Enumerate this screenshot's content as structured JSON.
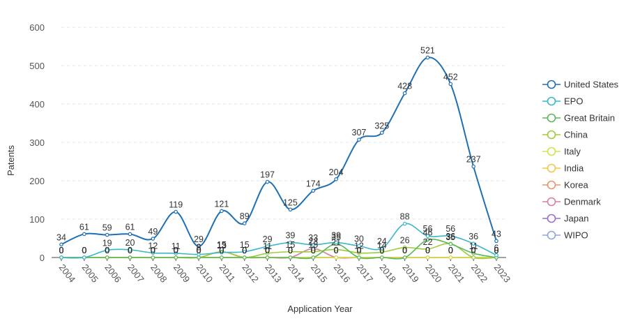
{
  "chart_data": {
    "type": "line",
    "xlabel": "Application Year",
    "ylabel": "Patents",
    "ylim": [
      0,
      600
    ],
    "yticks": [
      0,
      100,
      200,
      300,
      400,
      500,
      600
    ],
    "grid": "horizontal dashed",
    "legend_position": "right",
    "categories": [
      "2004",
      "2005",
      "2006",
      "2007",
      "2008",
      "2009",
      "2010",
      "2011",
      "2012",
      "2013",
      "2014",
      "2015",
      "2016",
      "2017",
      "2018",
      "2019",
      "2020",
      "2021",
      "2022",
      "2023"
    ],
    "series": [
      {
        "name": "United States",
        "color": "#1f6fb2",
        "values": [
          34,
          61,
          59,
          61,
          49,
          119,
          29,
          121,
          89,
          197,
          125,
          174,
          204,
          307,
          325,
          428,
          521,
          452,
          237,
          43
        ]
      },
      {
        "name": "EPO",
        "color": "#3ab7c9",
        "values": [
          0,
          0,
          19,
          20,
          12,
          11,
          8,
          13,
          15,
          29,
          39,
          33,
          39,
          30,
          24,
          88,
          56,
          56,
          36,
          6
        ]
      },
      {
        "name": "Great Britain",
        "color": "#5bb85c",
        "values": [
          0,
          0,
          0,
          0,
          0,
          0,
          0,
          0,
          0,
          0,
          0,
          0,
          35,
          0,
          0,
          0,
          46,
          35,
          11,
          0
        ]
      },
      {
        "name": "China",
        "color": "#9ccc3a",
        "values": [
          0,
          0,
          0,
          0,
          0,
          0,
          0,
          15,
          0,
          11,
          15,
          15,
          21,
          12,
          14,
          26,
          22,
          36,
          0,
          0
        ]
      },
      {
        "name": "Italy",
        "color": "#d6e04a",
        "values": [
          0,
          0,
          0,
          0,
          0,
          0,
          0,
          0,
          0,
          0,
          0,
          0,
          0,
          0,
          0,
          0,
          0,
          0,
          0,
          0
        ]
      },
      {
        "name": "India",
        "color": "#f0c64a",
        "values": [
          0,
          0,
          0,
          0,
          0,
          0,
          0,
          0,
          0,
          0,
          0,
          0,
          0,
          0,
          0,
          0,
          0,
          0,
          0,
          0
        ]
      },
      {
        "name": "Korea",
        "color": "#e8956a",
        "values": [
          0,
          0,
          0,
          0,
          0,
          0,
          0,
          15,
          0,
          0,
          0,
          0,
          0,
          0,
          0,
          0,
          0,
          0,
          0,
          0
        ]
      },
      {
        "name": "Denmark",
        "color": "#d77fa6",
        "values": [
          0,
          0,
          0,
          0,
          0,
          0,
          0,
          0,
          0,
          0,
          0,
          23,
          0,
          0,
          0,
          0,
          0,
          0,
          0,
          0
        ]
      },
      {
        "name": "Japan",
        "color": "#9a6fcf",
        "values": [
          0,
          0,
          0,
          0,
          0,
          0,
          0,
          0,
          0,
          0,
          0,
          0,
          0,
          0,
          0,
          0,
          0,
          0,
          0,
          0
        ]
      },
      {
        "name": "WIPO",
        "color": "#8fa6d8",
        "values": [
          0,
          0,
          0,
          0,
          0,
          0,
          0,
          0,
          0,
          0,
          0,
          0,
          0,
          0,
          0,
          0,
          0,
          0,
          0,
          0
        ]
      }
    ]
  }
}
